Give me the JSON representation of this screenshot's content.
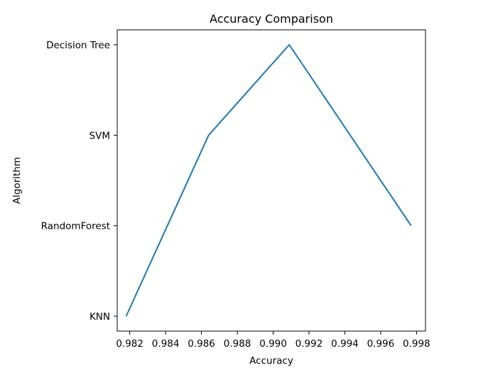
{
  "chart_data": {
    "type": "line",
    "title": "Accuracy Comparison",
    "xlabel": "Accuracy",
    "ylabel": "Algorithm",
    "xlim": [
      0.9813,
      0.9985
    ],
    "x_ticks": [
      "0.982",
      "0.984",
      "0.986",
      "0.988",
      "0.990",
      "0.992",
      "0.994",
      "0.996",
      "0.998"
    ],
    "categories": [
      "KNN",
      "RandomForest",
      "SVM",
      "Decision Tree"
    ],
    "series": [
      {
        "color": "#1f77b4",
        "points": [
          {
            "x": 0.9818,
            "y": "KNN"
          },
          {
            "x": 0.9864,
            "y": "SVM"
          },
          {
            "x": 0.9909,
            "y": "Decision Tree"
          },
          {
            "x": 0.9977,
            "y": "RandomForest"
          }
        ]
      }
    ],
    "grid": false,
    "legend": "none"
  }
}
